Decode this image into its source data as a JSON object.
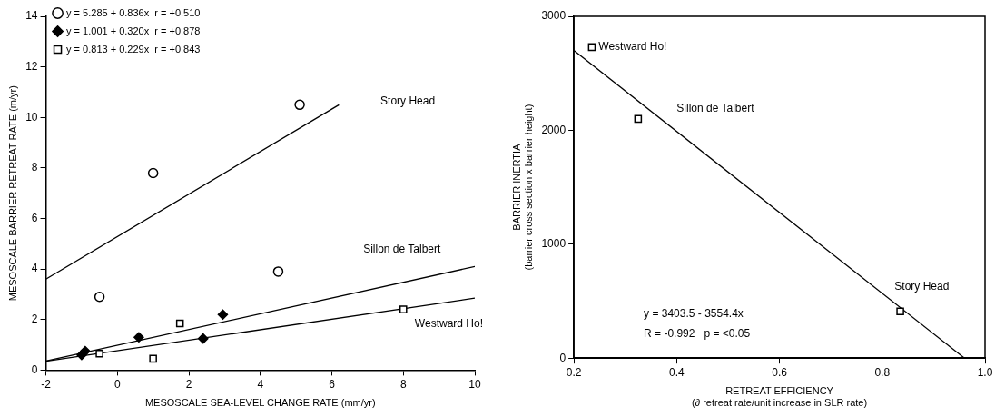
{
  "chart_data": [
    {
      "type": "scatter",
      "xlabel": "MESOSCALE SEA-LEVEL CHANGE RATE (mm/yr)",
      "ylabel": "MESOSCALE BARRIER RETREAT RATE (m/yr)",
      "xlim": [
        -2,
        10
      ],
      "xticks": [
        -2,
        0,
        2,
        4,
        6,
        8,
        10
      ],
      "ylim": [
        0,
        14
      ],
      "yticks": [
        0,
        2,
        4,
        6,
        8,
        10,
        12,
        14
      ],
      "grid": false,
      "legend": "top",
      "series": [
        {
          "name": "y = 5.285 + 0.836x  r = +0.510",
          "color": "#000000",
          "marker": "circle",
          "x": [
            -0.5,
            1.0,
            4.5,
            5.1
          ],
          "values": [
            2.9,
            7.8,
            3.9,
            10.5
          ]
        },
        {
          "name": "y = 1.001 + 0.320x  r = +0.878",
          "color": "#000000",
          "marker": "diamond",
          "x": [
            -1.0,
            -0.9,
            0.6,
            2.4,
            2.95
          ],
          "values": [
            0.6,
            0.75,
            1.3,
            1.25,
            2.2
          ]
        },
        {
          "name": "y = 0.813 + 0.229x  r = +0.843",
          "color": "#000000",
          "marker": "square",
          "x": [
            -0.5,
            1.0,
            1.75,
            8.0
          ],
          "values": [
            0.65,
            0.45,
            1.85,
            2.4
          ]
        },
        {
          "type": "line",
          "color": "#000000",
          "marker": "none",
          "x": [
            -2,
            6.2
          ],
          "values": [
            3.6,
            10.5
          ]
        },
        {
          "type": "line",
          "color": "#000000",
          "marker": "none",
          "x": [
            -2,
            10
          ],
          "values": [
            0.36,
            4.1
          ]
        },
        {
          "type": "line",
          "color": "#000000",
          "marker": "none",
          "x": [
            -2,
            10
          ],
          "values": [
            0.35,
            2.85
          ]
        }
      ],
      "annotations": [
        "Story Head",
        "Sillon de Talbert",
        "Westward Ho!"
      ]
    },
    {
      "type": "scatter",
      "xlabel": "RETREAT EFFICIENCY\n(∂ retreat rate/unit increase in SLR rate)",
      "ylabel": "BARRIER INERTIA\n(barrier cross section x barrier height)",
      "xlim": [
        0.2,
        1.0
      ],
      "xticks": [
        0.2,
        0.4,
        0.6,
        0.8,
        {
          "value": 1.0,
          "label": "1.0"
        }
      ],
      "ylim": [
        0,
        3000
      ],
      "yticks": [
        0,
        1000,
        2000,
        3000
      ],
      "grid": false,
      "series": [
        {
          "color": "#000000",
          "marker": "square",
          "x": [
            0.235,
            0.325,
            0.835
          ],
          "values": [
            2730,
            2100,
            410
          ]
        },
        {
          "type": "line",
          "color": "#000000",
          "marker": "none",
          "x": [
            0.2,
            0.96
          ],
          "values": [
            2700,
            0
          ]
        }
      ],
      "annotations": [
        "Westward Ho!",
        "Sillon de Talbert",
        "Story Head",
        "y = 3403.5 - 3554.4x",
        "R = -0.992   p = <0.05"
      ]
    }
  ]
}
